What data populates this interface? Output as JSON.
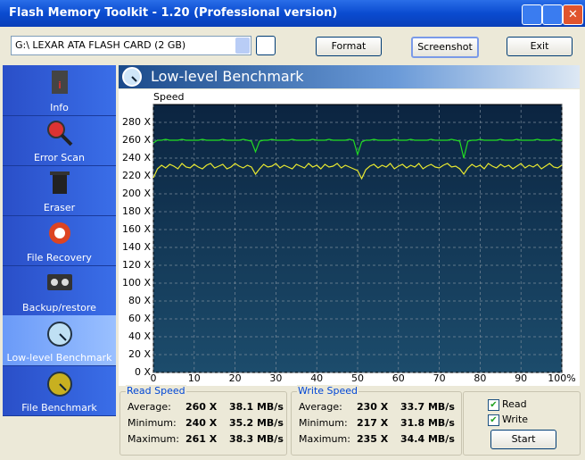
{
  "window": {
    "title": "Flash Memory Toolkit - 1.20 (Professional version)"
  },
  "toolbar": {
    "drive": "G:\\ LEXAR ATA FLASH CARD (2 GB)",
    "buttons": [
      "Format",
      "Screenshot",
      "Exit"
    ]
  },
  "sidebar": {
    "items": [
      "Info",
      "Error Scan",
      "Eraser",
      "File Recovery",
      "Backup/restore",
      "Low-level Benchmark",
      "File Benchmark"
    ]
  },
  "panel": {
    "title": "Low-level Benchmark"
  },
  "chart_data": {
    "type": "line",
    "y_label": "Speed",
    "x": [
      0,
      1,
      2,
      3,
      4,
      5,
      6,
      7,
      8,
      9,
      10,
      11,
      12,
      13,
      14,
      15,
      16,
      17,
      18,
      19,
      20,
      21,
      22,
      23,
      24,
      25,
      26,
      27,
      28,
      29,
      30,
      31,
      32,
      33,
      34,
      35,
      36,
      37,
      38,
      39,
      40,
      41,
      42,
      43,
      44,
      45,
      46,
      47,
      48,
      49,
      50,
      51,
      52,
      53,
      54,
      55,
      56,
      57,
      58,
      59,
      60,
      61,
      62,
      63,
      64,
      65,
      66,
      67,
      68,
      69,
      70,
      71,
      72,
      73,
      74,
      75,
      76,
      77,
      78,
      79,
      80,
      81,
      82,
      83,
      84,
      85,
      86,
      87,
      88,
      89,
      90,
      91,
      92,
      93,
      94,
      95,
      96,
      97,
      98,
      99,
      100
    ],
    "series": [
      {
        "name": "Read",
        "color": "#22dd22",
        "values": [
          257,
          260,
          260,
          261,
          260,
          260,
          260,
          261,
          260,
          260,
          260,
          260,
          261,
          260,
          260,
          260,
          260,
          261,
          260,
          260,
          260,
          260,
          261,
          260,
          259,
          247,
          259,
          260,
          260,
          261,
          260,
          260,
          260,
          260,
          261,
          260,
          260,
          260,
          260,
          261,
          260,
          260,
          260,
          261,
          260,
          260,
          260,
          260,
          261,
          260,
          244,
          258,
          260,
          260,
          261,
          260,
          260,
          260,
          260,
          261,
          260,
          260,
          260,
          261,
          260,
          260,
          260,
          260,
          261,
          260,
          260,
          260,
          260,
          261,
          260,
          259,
          240,
          259,
          260,
          260,
          261,
          260,
          260,
          260,
          260,
          261,
          260,
          260,
          260,
          261,
          260,
          260,
          260,
          260,
          261,
          260,
          260,
          260,
          261,
          260,
          260
        ]
      },
      {
        "name": "Write",
        "color": "#e8e830",
        "values": [
          218,
          228,
          232,
          229,
          233,
          231,
          228,
          234,
          230,
          229,
          233,
          230,
          228,
          232,
          234,
          229,
          231,
          233,
          228,
          230,
          234,
          231,
          229,
          232,
          230,
          222,
          228,
          233,
          230,
          231,
          234,
          229,
          232,
          230,
          228,
          233,
          231,
          229,
          234,
          230,
          232,
          228,
          233,
          230,
          231,
          234,
          229,
          232,
          230,
          228,
          226,
          217,
          227,
          231,
          233,
          229,
          232,
          230,
          234,
          228,
          231,
          233,
          229,
          232,
          230,
          234,
          228,
          231,
          233,
          230,
          229,
          232,
          234,
          230,
          231,
          228,
          222,
          229,
          233,
          230,
          232,
          228,
          234,
          231,
          229,
          233,
          230,
          232,
          228,
          231,
          234,
          229,
          232,
          230,
          233,
          228,
          231,
          234,
          230,
          229,
          232
        ]
      }
    ],
    "xlim": [
      0,
      100
    ],
    "ylim": [
      0,
      300
    ],
    "xticks": [
      0,
      10,
      20,
      30,
      40,
      50,
      60,
      70,
      80,
      90,
      {
        "value": 100,
        "label": "100%"
      }
    ],
    "yticks": [
      {
        "value": 0,
        "label": "0 X"
      },
      {
        "value": 20,
        "label": "20 X"
      },
      {
        "value": 40,
        "label": "40 X"
      },
      {
        "value": 60,
        "label": "60 X"
      },
      {
        "value": 80,
        "label": "80 X"
      },
      {
        "value": 100,
        "label": "100 X"
      },
      {
        "value": 120,
        "label": "120 X"
      },
      {
        "value": 140,
        "label": "140 X"
      },
      {
        "value": 160,
        "label": "160 X"
      },
      {
        "value": 180,
        "label": "180 X"
      },
      {
        "value": 200,
        "label": "200 X"
      },
      {
        "value": 220,
        "label": "220 X"
      },
      {
        "value": 240,
        "label": "240 X"
      },
      {
        "value": 260,
        "label": "260 X"
      },
      {
        "value": 280,
        "label": "280 X"
      }
    ],
    "grid": true
  },
  "read_stats": {
    "title": "Read Speed",
    "rows": [
      [
        "Average:",
        "260 X",
        "38.1 MB/s"
      ],
      [
        "Minimum:",
        "240 X",
        "35.2 MB/s"
      ],
      [
        "Maximum:",
        "261 X",
        "38.3 MB/s"
      ]
    ]
  },
  "write_stats": {
    "title": "Write Speed",
    "rows": [
      [
        "Average:",
        "230 X",
        "33.7 MB/s"
      ],
      [
        "Minimum:",
        "217 X",
        "31.8 MB/s"
      ],
      [
        "Maximum:",
        "235 X",
        "34.4 MB/s"
      ]
    ]
  },
  "controls": {
    "start": "Start"
  }
}
